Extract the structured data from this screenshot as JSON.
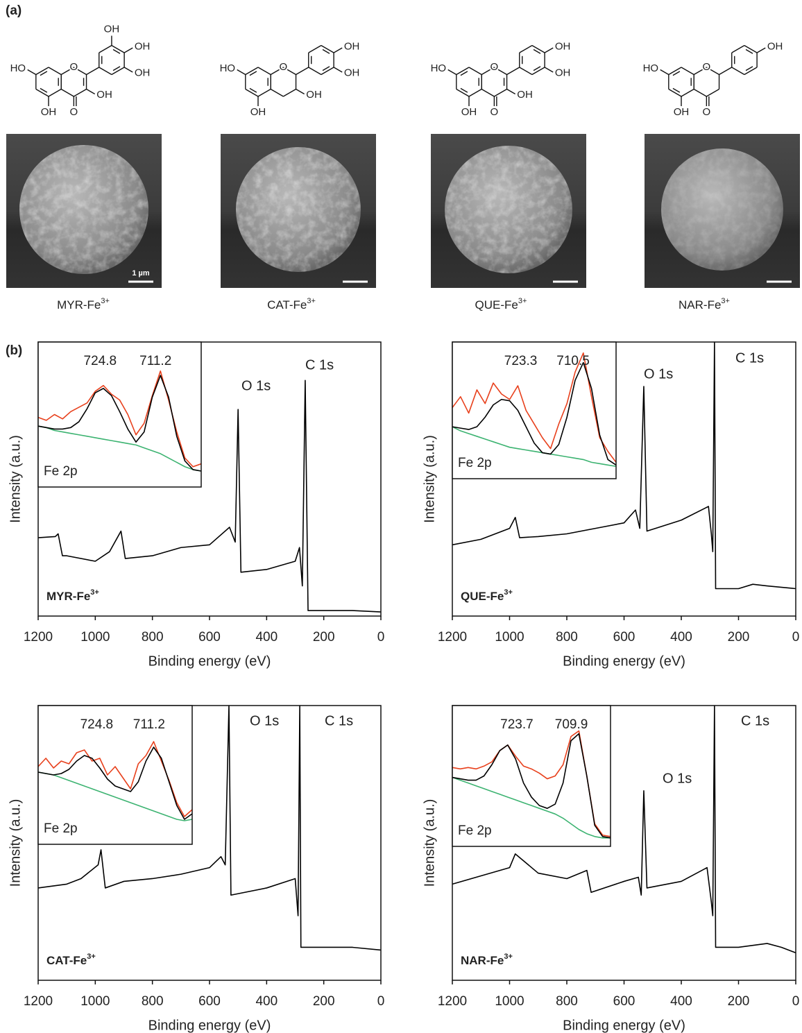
{
  "panel_a": {
    "label": "(a)",
    "scale_bar": "1 µm",
    "samples": [
      {
        "name": "MYR-Fe",
        "charge": "3+",
        "atoms": [
          "OH",
          "OH",
          "OH",
          "HO",
          "O",
          "OH",
          "OH",
          "O"
        ]
      },
      {
        "name": "CAT-Fe",
        "charge": "3+",
        "atoms": [
          "OH",
          "OH",
          "HO",
          "O",
          "OH",
          "OH"
        ]
      },
      {
        "name": "QUE-Fe",
        "charge": "3+",
        "atoms": [
          "OH",
          "OH",
          "HO",
          "O",
          "OH",
          "OH",
          "O"
        ]
      },
      {
        "name": "NAR-Fe",
        "charge": "3+",
        "atoms": [
          "OH",
          "HO",
          "O",
          "OH",
          "O"
        ]
      }
    ]
  },
  "panel_b": {
    "label": "(b)"
  },
  "chart_data": [
    {
      "type": "line",
      "title": {
        "name": "MYR-Fe",
        "charge": "3+"
      },
      "x_label": "Binding energy (eV)",
      "y_label": "Intensity (a.u.)",
      "xlim": [
        1200,
        0
      ],
      "ylim": [
        0,
        100
      ],
      "xticks": [
        1200,
        1000,
        800,
        600,
        400,
        200,
        0
      ],
      "x": [
        1200,
        1140,
        1130,
        1115,
        1100,
        1000,
        950,
        910,
        895,
        800,
        700,
        600,
        530,
        510,
        500,
        490,
        400,
        300,
        285,
        275,
        265,
        255,
        200,
        100,
        0
      ],
      "series": [
        {
          "color": "#000000",
          "values": [
            28.6,
            29,
            30,
            22,
            22,
            20,
            23.5,
            31,
            21,
            22,
            25,
            26,
            32.4,
            27,
            75.4,
            16,
            17,
            20,
            25,
            11,
            86,
            2,
            2,
            2,
            1.5
          ]
        }
      ],
      "annotations": [
        "O 1s",
        "C 1s"
      ],
      "inset": {
        "type": "line",
        "label": "Fe 2p",
        "peaks": [
          724.8,
          711.2
        ],
        "xlim": [
          740,
          700
        ],
        "ylim": [
          0,
          100
        ],
        "x": [
          740,
          738,
          736,
          734,
          732,
          730,
          728,
          726,
          724,
          722,
          720,
          718,
          716,
          714,
          712,
          710,
          708,
          706,
          704,
          702,
          700
        ],
        "series": [
          {
            "color": "#e8401c",
            "values": [
              48,
              46,
              50,
              47,
              52,
              55,
              58,
              66,
              70,
              64,
              60,
              50,
              36,
              44,
              63,
              80,
              60,
              38,
              20,
              14,
              16
            ]
          },
          {
            "color": "#3cb371",
            "values": [
              42,
              41,
              39,
              38,
              37,
              36,
              35,
              34,
              33,
              32,
              31,
              30,
              29,
              27,
              25,
              23,
              20,
              17,
              14,
              12,
              11
            ]
          },
          {
            "color": "#000000",
            "values": [
              42,
              41,
              40,
              40,
              41,
              45,
              54,
              65,
              68,
              63,
              52,
              40,
              31,
              38,
              62,
              77,
              62,
              35,
              18,
              12,
              11
            ]
          }
        ]
      }
    },
    {
      "type": "line",
      "title": {
        "name": "QUE-Fe",
        "charge": "3+"
      },
      "x_label": "Binding energy (eV)",
      "y_label": "Intensity (a.u.)",
      "xlim": [
        1200,
        0
      ],
      "ylim": [
        0,
        100
      ],
      "xticks": [
        1200,
        1000,
        800,
        600,
        400,
        200,
        0
      ],
      "x": [
        1200,
        1100,
        1000,
        980,
        965,
        900,
        800,
        700,
        600,
        560,
        545,
        531,
        520,
        400,
        305,
        295,
        290,
        284,
        280,
        200,
        150,
        100,
        0
      ],
      "series": [
        {
          "color": "#000000",
          "values": [
            26,
            28,
            32,
            36,
            28.6,
            29,
            30,
            32,
            34,
            38.7,
            32,
            83.8,
            31,
            35,
            40,
            30,
            23.5,
            100,
            10,
            10,
            11.6,
            11,
            10
          ]
        }
      ],
      "annotations": [
        "O 1s",
        "C 1s"
      ],
      "inset": {
        "type": "line",
        "label": "Fe 2p",
        "peaks": [
          723.3,
          710.5
        ],
        "xlim": [
          740,
          700
        ],
        "ylim": [
          0,
          100
        ],
        "x": [
          740,
          738,
          736,
          734,
          732,
          730,
          728,
          726,
          724,
          722,
          720,
          718,
          716,
          714,
          712,
          710,
          708,
          706,
          704,
          702,
          700
        ],
        "series": [
          {
            "color": "#e8401c",
            "values": [
              52,
              60,
              48,
              65,
              55,
              70,
              62,
              58,
              68,
              50,
              40,
              30,
              22,
              40,
              55,
              78,
              92,
              60,
              30,
              20,
              12
            ]
          },
          {
            "color": "#3cb371",
            "values": [
              38,
              35,
              33,
              31,
              29,
              27,
              25,
              23,
              22,
              21,
              20,
              19,
              18,
              17,
              16,
              15,
              14,
              12,
              11,
              10,
              9
            ]
          },
          {
            "color": "#000000",
            "values": [
              38,
              37,
              36,
              38,
              45,
              54,
              58,
              57,
              50,
              38,
              26,
              19,
              18,
              25,
              45,
              72,
              85,
              66,
              32,
              14,
              10
            ]
          }
        ]
      }
    },
    {
      "type": "line",
      "title": {
        "name": "CAT-Fe",
        "charge": "3+"
      },
      "x_label": "Binding energy (eV)",
      "y_label": "Intensity (a.u.)",
      "xlim": [
        1200,
        0
      ],
      "ylim": [
        0,
        100
      ],
      "xticks": [
        1200,
        1000,
        800,
        600,
        400,
        200,
        0
      ],
      "x": [
        1200,
        1100,
        1050,
        990,
        980,
        965,
        900,
        800,
        700,
        600,
        560,
        545,
        532,
        525,
        400,
        300,
        290,
        284,
        280,
        200,
        100,
        0
      ],
      "series": [
        {
          "color": "#000000",
          "values": [
            33.6,
            35,
            37,
            42,
            47.5,
            33.6,
            36,
            37,
            38.6,
            41,
            45,
            42,
            100,
            31,
            33.6,
            37,
            23.5,
            100,
            12,
            12,
            12,
            11
          ]
        }
      ],
      "annotations": [
        "O 1s",
        "C 1s"
      ],
      "inset": {
        "type": "line",
        "label": "Fe 2p",
        "peaks": [
          724.8,
          711.2
        ],
        "xlim": [
          740,
          700
        ],
        "ylim": [
          0,
          100
        ],
        "x": [
          740,
          738,
          736,
          734,
          732,
          730,
          728,
          726,
          724,
          722,
          720,
          718,
          716,
          714,
          712,
          710,
          708,
          706,
          704,
          702,
          700
        ],
        "series": [
          {
            "color": "#e8401c",
            "values": [
              56,
              62,
              55,
              60,
              58,
              66,
              68,
              60,
              62,
              50,
              56,
              48,
              40,
              58,
              64,
              74,
              60,
              46,
              30,
              20,
              25
            ]
          },
          {
            "color": "#3cb371",
            "values": [
              52,
              51,
              50,
              48,
              46,
              44,
              42,
              40,
              38,
              36,
              34,
              32,
              30,
              28,
              26,
              24,
              22,
              20,
              18,
              17,
              18
            ]
          },
          {
            "color": "#000000",
            "values": [
              52,
              51,
              50,
              51,
              54,
              60,
              64,
              62,
              55,
              47,
              42,
              40,
              38,
              45,
              60,
              70,
              62,
              45,
              28,
              18,
              22
            ]
          }
        ]
      }
    },
    {
      "type": "line",
      "title": {
        "name": "NAR-Fe",
        "charge": "3+"
      },
      "x_label": "Binding energy (eV)",
      "y_label": "Intensity (a.u.)",
      "xlim": [
        1200,
        0
      ],
      "ylim": [
        0,
        100
      ],
      "xticks": [
        1200,
        1000,
        800,
        600,
        400,
        200,
        0
      ],
      "x": [
        1200,
        1100,
        1000,
        980,
        900,
        800,
        730,
        715,
        600,
        550,
        540,
        531,
        520,
        400,
        310,
        295,
        290,
        284,
        280,
        200,
        100,
        50,
        0
      ],
      "series": [
        {
          "color": "#000000",
          "values": [
            35,
            38,
            41,
            46,
            39,
            37,
            40,
            32,
            36,
            37.5,
            31,
            69,
            33.6,
            36,
            41,
            28.5,
            23.5,
            100,
            12,
            12,
            13.4,
            12,
            10
          ]
        }
      ],
      "annotations": [
        "O 1s",
        "C 1s"
      ],
      "inset": {
        "type": "line",
        "label": "Fe 2p",
        "peaks": [
          723.7,
          709.9
        ],
        "xlim": [
          740,
          700
        ],
        "ylim": [
          0,
          100
        ],
        "x": [
          740,
          738,
          736,
          734,
          732,
          730,
          728,
          726,
          724,
          722,
          720,
          718,
          716,
          714,
          712,
          710,
          708,
          706,
          704,
          702,
          700
        ],
        "series": [
          {
            "color": "#e8401c",
            "values": [
              56,
              55,
              56,
              55,
              57,
              60,
              68,
              72,
              64,
              57,
              55,
              52,
              48,
              50,
              58,
              78,
              82,
              50,
              16,
              8,
              7
            ]
          },
          {
            "color": "#3cb371",
            "values": [
              49,
              47,
              45,
              43,
              41,
              39,
              37,
              35,
              33,
              31,
              29,
              27,
              25,
              23,
              20,
              16,
              12,
              9,
              7,
              6,
              6
            ]
          },
          {
            "color": "#000000",
            "values": [
              49,
              48,
              47,
              47,
              50,
              58,
              68,
              72,
              62,
              45,
              35,
              29,
              27,
              30,
              45,
              75,
              80,
              50,
              15,
              7,
              6
            ]
          }
        ]
      }
    }
  ]
}
